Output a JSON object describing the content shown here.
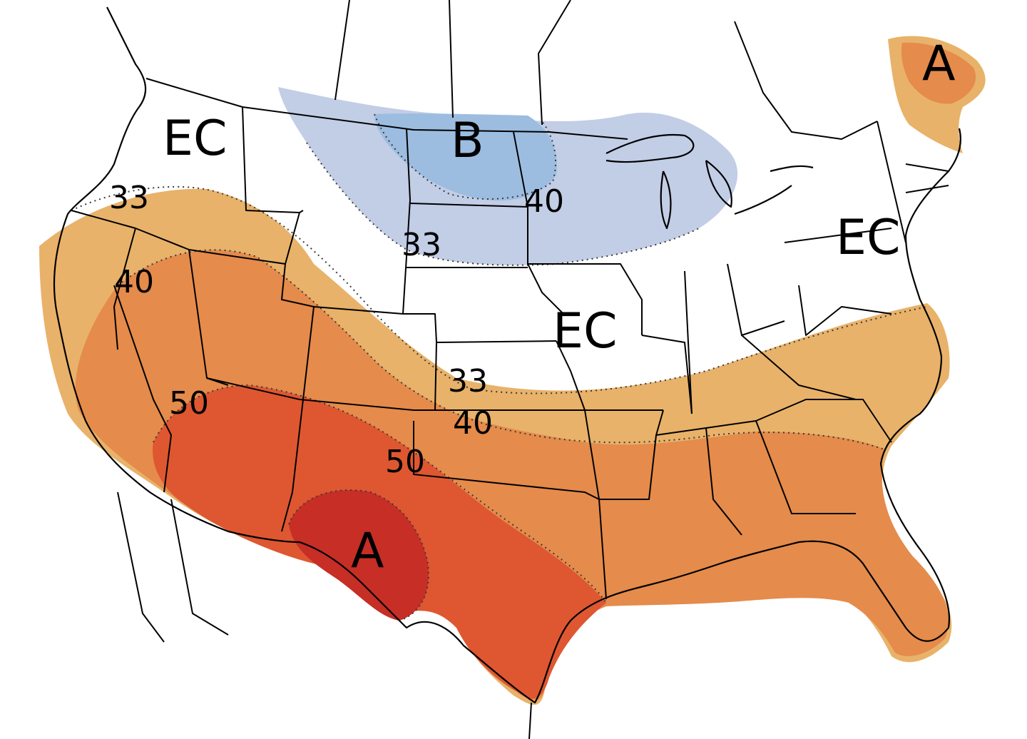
{
  "map": {
    "category_labels": {
      "ec_northwest": "EC",
      "ec_midwest": "EC",
      "ec_northeast": "EC",
      "below_north": "B",
      "above_southwest": "A",
      "above_maine": "A"
    },
    "contour_labels": {
      "c33_west": "33",
      "c40_west": "40",
      "c50_west": "50",
      "c33_north": "33",
      "c40_north": "40",
      "c33_plains": "33",
      "c40_plains": "40",
      "c50_south": "50"
    },
    "colors": {
      "above_33": "#e8b26a",
      "above_40": "#e58b4b",
      "above_50": "#de5731",
      "above_60": "#c62e26",
      "below_33": "#c2cde6",
      "below_40": "#9cbde0",
      "background": "#ffffff"
    }
  }
}
